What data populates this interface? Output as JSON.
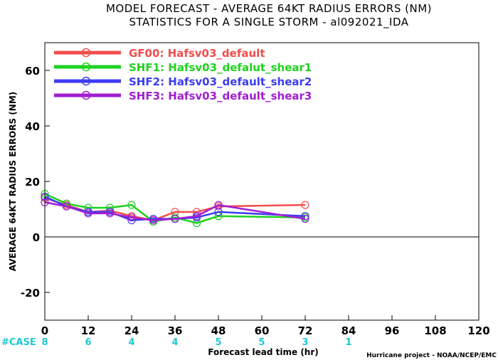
{
  "chart_data": {
    "type": "line",
    "title": "MODEL FORECAST - AVERAGE 64KT RADIUS ERRORS (NM)",
    "subtitle": "STATISTICS FOR A SINGLE STORM - al092021_IDA",
    "xlabel": "Forecast lead time (hr)",
    "ylabel": "AVERAGE 64KT RADIUS ERRORS (NM)",
    "xlim": [
      0,
      120
    ],
    "ylim": [
      -30,
      70
    ],
    "x_ticks": [
      0,
      12,
      24,
      36,
      48,
      60,
      72,
      84,
      96,
      108,
      120
    ],
    "y_ticks": [
      -20,
      0,
      20,
      40,
      60
    ],
    "grid": false,
    "legend_position": "top-left",
    "zero_line": true,
    "case_label": "#CASE",
    "case_counts": [
      {
        "x": 0,
        "n": "8"
      },
      {
        "x": 12,
        "n": "6"
      },
      {
        "x": 24,
        "n": "4"
      },
      {
        "x": 36,
        "n": "4"
      },
      {
        "x": 48,
        "n": "5"
      },
      {
        "x": 60,
        "n": "5"
      },
      {
        "x": 72,
        "n": "3"
      },
      {
        "x": 84,
        "n": "1"
      }
    ],
    "credit": "Hurricane project - NOAA/NCEP/EMC",
    "series": [
      {
        "name": "GF00: Hafsv03_default",
        "color": "#f24d4d",
        "x": [
          0,
          6,
          12,
          18,
          24,
          30,
          36,
          42,
          48,
          72
        ],
        "y": [
          14,
          11.5,
          9,
          9.5,
          7.5,
          6,
          9,
          9,
          11,
          11.5
        ]
      },
      {
        "name": "SHF1: Hafsv03_defalut_shear1",
        "color": "#1ed21e",
        "x": [
          0,
          6,
          12,
          18,
          24,
          30,
          36,
          42,
          48,
          72
        ],
        "y": [
          15.5,
          12,
          10.5,
          10.5,
          11.5,
          5.5,
          7,
          5,
          7.5,
          7
        ]
      },
      {
        "name": "SHF2: Hafsv03_default_shear2",
        "color": "#3c3cf5",
        "x": [
          0,
          6,
          12,
          18,
          24,
          30,
          36,
          42,
          48,
          72
        ],
        "y": [
          14.5,
          11,
          9,
          9,
          6,
          6.5,
          6.5,
          7,
          9,
          7.5
        ]
      },
      {
        "name": "SHF3: Hafsv03_default_shear3",
        "color": "#a01ed2",
        "x": [
          0,
          6,
          12,
          18,
          24,
          30,
          36,
          42,
          48,
          72
        ],
        "y": [
          12.5,
          11,
          8.5,
          8.5,
          7,
          6,
          6.5,
          7.5,
          11.5,
          6.5
        ]
      }
    ]
  }
}
